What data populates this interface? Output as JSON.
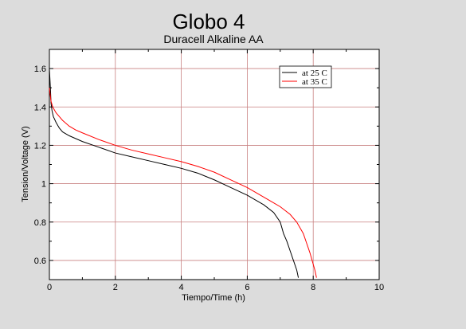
{
  "chart_data": {
    "type": "line",
    "title": "Globo 4",
    "subtitle": "Duracell Alkaline AA",
    "xlabel": "Tiempo/Time (h)",
    "ylabel": "Tension/Voltage (V)",
    "xlim": [
      0,
      10
    ],
    "ylim": [
      0.5,
      1.7
    ],
    "xticks": [
      0,
      2,
      4,
      6,
      8,
      10
    ],
    "xtick_labels": [
      "0",
      "2",
      "4",
      "6",
      "8",
      "10"
    ],
    "yticks": [
      0.6,
      0.8,
      1.0,
      1.2,
      1.4,
      1.6
    ],
    "ytick_labels": [
      "0.6",
      "0.8",
      "1",
      "1.2",
      "1.4",
      "1.6"
    ],
    "grid": true,
    "grid_color": "#c88080",
    "legend_position": "top-right",
    "series": [
      {
        "name": "at 25 C",
        "color": "#000000",
        "x": [
          0,
          0.03,
          0.05,
          0.08,
          0.12,
          0.2,
          0.3,
          0.4,
          0.6,
          0.8,
          1.0,
          1.5,
          2.0,
          2.5,
          3.0,
          3.5,
          4.0,
          4.5,
          5.0,
          5.5,
          6.0,
          6.5,
          6.8,
          7.0,
          7.1,
          7.2,
          7.3,
          7.4,
          7.5,
          7.55
        ],
        "y": [
          1.6,
          1.5,
          1.42,
          1.38,
          1.35,
          1.32,
          1.29,
          1.27,
          1.25,
          1.235,
          1.22,
          1.19,
          1.16,
          1.14,
          1.12,
          1.1,
          1.08,
          1.055,
          1.02,
          0.98,
          0.94,
          0.89,
          0.85,
          0.8,
          0.74,
          0.7,
          0.65,
          0.6,
          0.55,
          0.51
        ]
      },
      {
        "name": "at 35 C",
        "color": "#ff0000",
        "x": [
          0,
          0.02,
          0.05,
          0.1,
          0.2,
          0.3,
          0.4,
          0.6,
          0.8,
          1.0,
          1.5,
          2.0,
          2.5,
          3.0,
          3.5,
          4.0,
          4.5,
          5.0,
          5.5,
          6.0,
          6.5,
          7.0,
          7.3,
          7.5,
          7.7,
          7.8,
          7.9,
          8.0,
          8.05,
          8.1
        ],
        "y": [
          1.5,
          1.47,
          1.43,
          1.4,
          1.37,
          1.35,
          1.33,
          1.3,
          1.28,
          1.265,
          1.23,
          1.2,
          1.175,
          1.155,
          1.135,
          1.115,
          1.09,
          1.06,
          1.02,
          0.98,
          0.93,
          0.88,
          0.84,
          0.8,
          0.74,
          0.69,
          0.64,
          0.58,
          0.55,
          0.51
        ]
      }
    ]
  }
}
